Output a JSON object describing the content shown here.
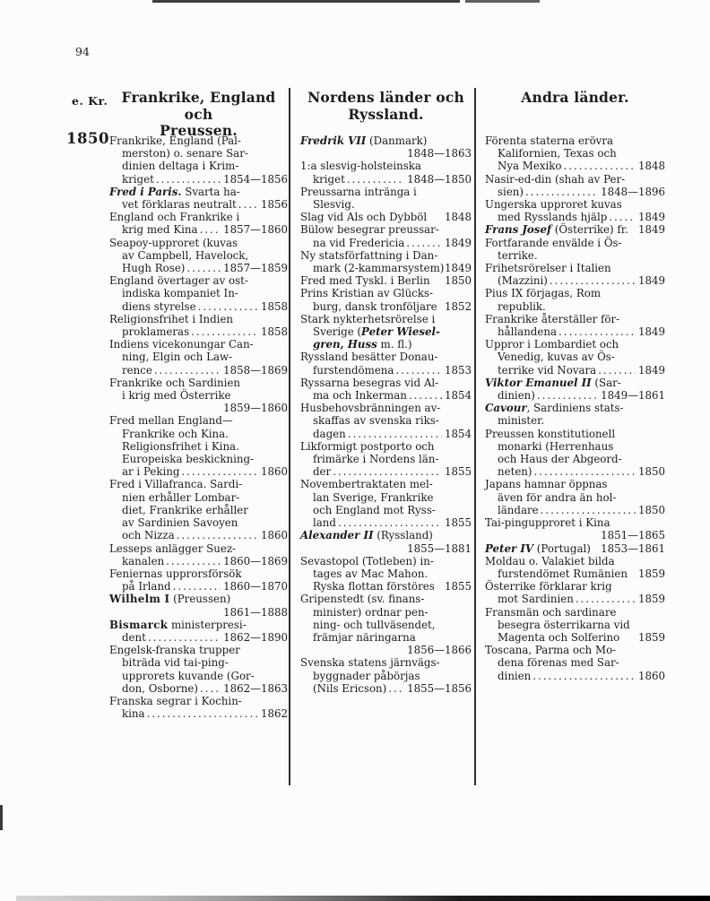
{
  "page": {
    "number": "94"
  },
  "margin": {
    "era_label": "e. Kr.",
    "year_label": "1850"
  },
  "colors": {
    "ink": "#1c1c1c",
    "paper": "#fcfcfa",
    "rule": "#2e2e2e"
  },
  "columns": [
    {
      "title_lines": [
        "Frankrike, England och",
        "Preussen."
      ],
      "entries_lines": [
        {
          "t": "Frankrike, England (Pal-",
          "i": 0
        },
        {
          "t": "merston) o. senare Sar-",
          "i": 1
        },
        {
          "t": "dinien deltaga i Krim-",
          "i": 1
        },
        {
          "t": "kriget",
          "i": 1,
          "l": true,
          "y": "1854—1856"
        },
        {
          "t": "*Fred i Paris.* Svarta ha-",
          "i": 0
        },
        {
          "t": "vet förklaras neutralt",
          "i": 1,
          "l": true,
          "y": "1856"
        },
        {
          "t": "England och Frankrike i",
          "i": 0
        },
        {
          "t": "krig med Kina",
          "i": 1,
          "l": true,
          "y": "1857—1860"
        },
        {
          "t": "Seapoy-upproret (kuvas",
          "i": 0
        },
        {
          "t": "av Campbell, Havelock,",
          "i": 1
        },
        {
          "t": "Hugh Rose)",
          "i": 1,
          "l": true,
          "y": "1857—1859"
        },
        {
          "t": "England övertager av ost-",
          "i": 0
        },
        {
          "t": "indiska kompaniet In-",
          "i": 1
        },
        {
          "t": "diens styrelse",
          "i": 1,
          "l": true,
          "y": "1858"
        },
        {
          "t": "Religionsfrihet i Indien",
          "i": 0
        },
        {
          "t": "proklameras",
          "i": 1,
          "l": true,
          "y": "1858"
        },
        {
          "t": "Indiens vicekonungar Can-",
          "i": 0
        },
        {
          "t": "ning, Elgin och Law-",
          "i": 1
        },
        {
          "t": "rence",
          "i": 1,
          "l": true,
          "y": "1858—1869"
        },
        {
          "t": "Frankrike och Sardinien",
          "i": 0
        },
        {
          "t": "i krig med Österrike",
          "i": 1
        },
        {
          "y": "1859—1860"
        },
        {
          "t": "Fred mellan England—",
          "i": 0
        },
        {
          "t": "Frankrike och Kina.",
          "i": 1
        },
        {
          "t": "Religionsfrihet i Kina.",
          "i": 1
        },
        {
          "t": "Europeiska beskickning-",
          "i": 1
        },
        {
          "t": "ar i Peking",
          "i": 1,
          "l": true,
          "y": "1860"
        },
        {
          "t": "Fred i Villafranca. Sardi-",
          "i": 0
        },
        {
          "t": "nien erhåller Lombar-",
          "i": 1
        },
        {
          "t": "diet, Frankrike erhåller",
          "i": 1
        },
        {
          "t": "av Sardinien Savoyen",
          "i": 1
        },
        {
          "t": "och Nizza",
          "i": 1,
          "l": true,
          "y": "1860"
        },
        {
          "t": "Lesseps anlägger Suez-",
          "i": 0
        },
        {
          "t": "kanalen",
          "i": 1,
          "l": true,
          "y": "1860—1869"
        },
        {
          "t": "Feniernas upprorsförsök",
          "i": 0
        },
        {
          "t": "på Irland",
          "i": 1,
          "l": true,
          "y": "1860—1870"
        },
        {
          "t": "**Wilhelm I** (Preussen)",
          "i": 0
        },
        {
          "y": "1861—1888"
        },
        {
          "t": "**Bismarck** ministerpresi-",
          "i": 0
        },
        {
          "t": "dent",
          "i": 1,
          "l": true,
          "y": "1862—1890"
        },
        {
          "t": "Engelsk-franska trupper",
          "i": 0
        },
        {
          "t": "biträda vid tai-ping-",
          "i": 1
        },
        {
          "t": "upprorets kuvande (Gor-",
          "i": 1
        },
        {
          "t": "don, Osborne)",
          "i": 1,
          "l": true,
          "y": "1862—1863"
        },
        {
          "t": "Franska segrar i Kochin-",
          "i": 0
        },
        {
          "t": "kina",
          "i": 1,
          "l": true,
          "y": "1862"
        }
      ]
    },
    {
      "title_lines": [
        "Nordens länder och",
        "Ryssland."
      ],
      "entries_lines": [
        {
          "t": "*Fredrik VII* (Danmark)",
          "i": 0
        },
        {
          "y": "1848—1863"
        },
        {
          "t": "1:a slesvig-holsteinska",
          "i": 0
        },
        {
          "t": "kriget",
          "i": 1,
          "l": true,
          "y": "1848—1850"
        },
        {
          "t": "Preussarna intränga i",
          "i": 0
        },
        {
          "t": "Slesvig.",
          "i": 1
        },
        {
          "t": "Slag vid Als och Dybböl",
          "i": 0,
          "y": "1848"
        },
        {
          "t": "Bülow besegrar preussar-",
          "i": 0
        },
        {
          "t": "na vid Fredericia",
          "i": 1,
          "l": true,
          "y": "1849"
        },
        {
          "t": "Ny statsförfattning i Dan-",
          "i": 0
        },
        {
          "t": "mark (2-kammarsystem)",
          "i": 1,
          "y": "1849"
        },
        {
          "t": "Fred med Tyskl. i Berlin",
          "i": 0,
          "y": "1850"
        },
        {
          "t": "Prins Kristian av Glücks-",
          "i": 0
        },
        {
          "t": "burg, dansk tronföljare",
          "i": 1,
          "y": "1852"
        },
        {
          "t": "Stark nykterhetsrörelse i",
          "i": 0
        },
        {
          "t": "Sverige (*Peter Wiesel-*",
          "i": 1
        },
        {
          "t": "*gren, Huss* m. fl.)",
          "i": 1
        },
        {
          "t": "Ryssland besätter Donau-",
          "i": 0
        },
        {
          "t": "furstendömena",
          "i": 1,
          "l": true,
          "y": "1853"
        },
        {
          "t": "Ryssarna besegras vid Al-",
          "i": 0
        },
        {
          "t": "ma och Inkerman",
          "i": 1,
          "l": true,
          "y": "1854"
        },
        {
          "t": "Husbehovsbränningen av-",
          "i": 0
        },
        {
          "t": "skaffas av svenska riks-",
          "i": 1
        },
        {
          "t": "dagen",
          "i": 1,
          "l": true,
          "y": "1854"
        },
        {
          "t": "Likformigt postporto och",
          "i": 0
        },
        {
          "t": "frimärke i Nordens län-",
          "i": 1
        },
        {
          "t": "der",
          "i": 1,
          "l": true,
          "y": "1855"
        },
        {
          "t": "Novembertraktaten mel-",
          "i": 0
        },
        {
          "t": "lan Sverige, Frankrike",
          "i": 1
        },
        {
          "t": "och England mot Ryss-",
          "i": 1
        },
        {
          "t": "land",
          "i": 1,
          "l": true,
          "y": "1855"
        },
        {
          "t": "*Alexander II* (Ryssland)",
          "i": 0
        },
        {
          "y": "1855—1881"
        },
        {
          "t": "Sevastopol (Totleben) in-",
          "i": 0
        },
        {
          "t": "tages av Mac Mahon.",
          "i": 1
        },
        {
          "t": "Ryska flottan förstöres",
          "i": 1,
          "y": "1855"
        },
        {
          "t": "Gripenstedt (sv. finans-",
          "i": 0
        },
        {
          "t": "minister) ordnar pen-",
          "i": 1
        },
        {
          "t": "ning- och tullväsendet,",
          "i": 1
        },
        {
          "t": "främjar näringarna",
          "i": 1
        },
        {
          "y": "1856—1866"
        },
        {
          "t": "Svenska statens järnvägs-",
          "i": 0
        },
        {
          "t": "byggnader påbörjas",
          "i": 1
        },
        {
          "t": "(Nils Ericson)",
          "i": 1,
          "l": true,
          "y": "1855—1856"
        }
      ]
    },
    {
      "title_lines": [
        "Andra länder."
      ],
      "entries_lines": [
        {
          "t": "Förenta staterna erövra",
          "i": 0
        },
        {
          "t": "Kalifornien, Texas och",
          "i": 1
        },
        {
          "t": "Nya Mexiko",
          "i": 1,
          "l": true,
          "y": "1848"
        },
        {
          "t": "Nasir-ed-din (shah av Per-",
          "i": 0
        },
        {
          "t": "sien)",
          "i": 1,
          "l": true,
          "y": "1848—1896"
        },
        {
          "t": "Ungerska upproret kuvas",
          "i": 0
        },
        {
          "t": "med Rysslands hjälp",
          "i": 1,
          "l": true,
          "y": "1849"
        },
        {
          "t": "*Frans Josef* (Österrike) fr.",
          "i": 0,
          "y": "1849"
        },
        {
          "t": "Fortfarande envälde i Ös-",
          "i": 0
        },
        {
          "t": "terrike.",
          "i": 1
        },
        {
          "t": "Frihetsrörelser i Italien",
          "i": 0
        },
        {
          "t": "(Mazzini)",
          "i": 1,
          "l": true,
          "y": "1849"
        },
        {
          "t": "Pius IX förjagas, Rom",
          "i": 0
        },
        {
          "t": "republik.",
          "i": 1
        },
        {
          "t": "Frankrike återställer för-",
          "i": 0
        },
        {
          "t": "hållandena",
          "i": 1,
          "l": true,
          "y": "1849"
        },
        {
          "t": "Uppror i Lombardiet och",
          "i": 0
        },
        {
          "t": "Venedig, kuvas av Ös-",
          "i": 1
        },
        {
          "t": "terrike vid Novara",
          "i": 1,
          "l": true,
          "y": "1849"
        },
        {
          "t": "*Viktor Emanuel II* (Sar-",
          "i": 0
        },
        {
          "t": "dinien)",
          "i": 1,
          "l": true,
          "y": "1849—1861"
        },
        {
          "t": "*Cavour*, Sardiniens stats-",
          "i": 0
        },
        {
          "t": "minister.",
          "i": 1
        },
        {
          "t": "Preussen konstitutionell",
          "i": 0
        },
        {
          "t": "monarki (Herrenhaus",
          "i": 1
        },
        {
          "t": "och Haus der Abgeord-",
          "i": 1
        },
        {
          "t": "neten)",
          "i": 1,
          "l": true,
          "y": "1850"
        },
        {
          "t": "Japans hamnar öppnas",
          "i": 0
        },
        {
          "t": "även för andra än hol-",
          "i": 1
        },
        {
          "t": "ländare",
          "i": 1,
          "l": true,
          "y": "1850"
        },
        {
          "t": "Tai-pingupproret i Kina",
          "i": 0
        },
        {
          "y": "1851—1865"
        },
        {
          "t": "*Peter IV* (Portugal)",
          "i": 0,
          "y": "1853—1861"
        },
        {
          "t": "Moldau o. Valakiet bilda",
          "i": 0
        },
        {
          "t": "furstendömet Rumänien",
          "i": 1,
          "y": "1859"
        },
        {
          "t": "Österrike förklarar krig",
          "i": 0
        },
        {
          "t": "mot Sardinien",
          "i": 1,
          "l": true,
          "y": "1859"
        },
        {
          "t": "Fransmän och sardinare",
          "i": 0
        },
        {
          "t": "besegra österrikarna vid",
          "i": 1
        },
        {
          "t": "Magenta och Solferino",
          "i": 1,
          "y": "1859"
        },
        {
          "t": "Toscana, Parma och Mo-",
          "i": 0
        },
        {
          "t": "dena förenas med Sar-",
          "i": 1
        },
        {
          "t": "dinien",
          "i": 1,
          "l": true,
          "y": "1860"
        }
      ]
    }
  ]
}
